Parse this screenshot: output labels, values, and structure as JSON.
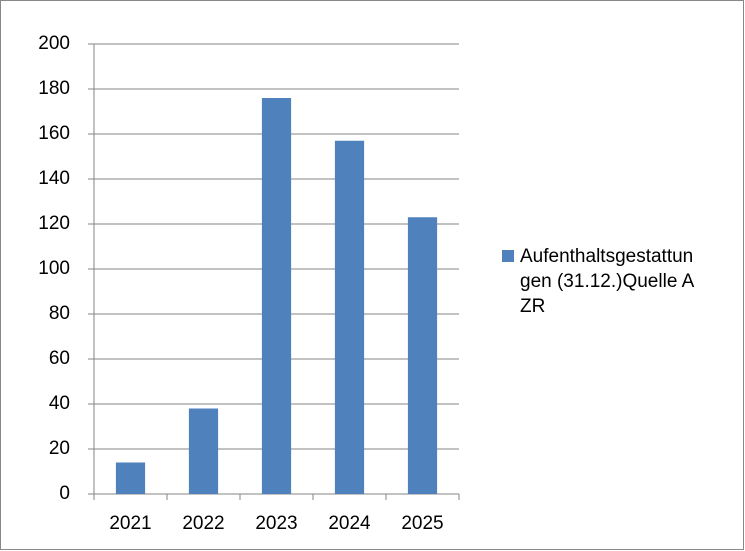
{
  "chart_data": {
    "type": "bar",
    "categories": [
      "2021",
      "2022",
      "2023",
      "2024",
      "2025"
    ],
    "series": [
      {
        "name": "Aufenthaltsgestattungen (31.12.)Quelle AZR",
        "color": "#4f81bd",
        "values": [
          14,
          38,
          176,
          157,
          123
        ]
      }
    ],
    "ylim": [
      0,
      200
    ],
    "yticks": [
      0,
      20,
      40,
      60,
      80,
      100,
      120,
      140,
      160,
      180,
      200
    ],
    "grid": true,
    "legend": "right"
  }
}
